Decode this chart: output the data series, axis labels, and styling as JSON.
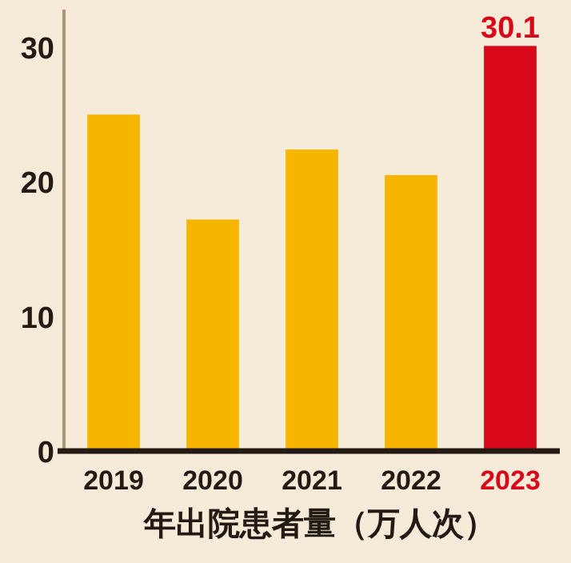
{
  "chart_data": {
    "type": "bar",
    "xlabel": "年出院患者量（万人次）",
    "categories": [
      "2019",
      "2020",
      "2021",
      "2022",
      "2023"
    ],
    "values": [
      25.0,
      17.2,
      22.4,
      20.5,
      30.1
    ],
    "colors": [
      "#f8b500",
      "#f8b500",
      "#f8b500",
      "#f8b500",
      "#d8081a"
    ],
    "value_labels": [
      null,
      null,
      null,
      null,
      "30.1"
    ],
    "ylim": [
      0,
      32.8
    ],
    "yticks": [
      0,
      10,
      20,
      30
    ],
    "grid": false
  }
}
